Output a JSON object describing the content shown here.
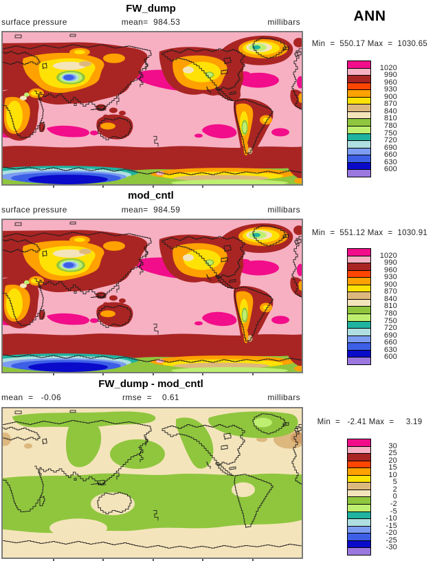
{
  "season_label": "ANN",
  "panels": [
    {
      "title": "FW_dump",
      "left_label": "surface pressure",
      "center_label": "mean=  984.53",
      "right_label": "millibars",
      "minmax_label": "Min  =  550.17 Max  =  1030.65"
    },
    {
      "title": "mod_cntl",
      "left_label": "surface pressure",
      "center_label": "mean=  984.59",
      "right_label": "millibars",
      "minmax_label": "Min  =  551.12 Max  =  1030.91"
    },
    {
      "title": "FW_dump - mod_cntl",
      "left_label": "mean  =   -0.06",
      "center_label": "rmse  =    0.61",
      "right_label": "millibars",
      "minmax_label": "Min  =   -2.41 Max  =     3.19"
    }
  ],
  "pressure_legend": {
    "labels": [
      "1020",
      "990",
      "960",
      "930",
      "900",
      "870",
      "840",
      "810",
      "780",
      "750",
      "720",
      "690",
      "660",
      "630",
      "600"
    ],
    "colors": [
      "#F20D8A",
      "#F6B0C2",
      "#A92523",
      "#FF4500",
      "#FFA100",
      "#FFE205",
      "#DDB87E",
      "#F4E4BB",
      "#8FC63E",
      "#BEEF70",
      "#1FB3A0",
      "#AFDFE0",
      "#7B9CF0",
      "#3C5FE6",
      "#0A0ACB",
      "#9B78E0"
    ]
  },
  "diff_legend": {
    "labels": [
      "30",
      "25",
      "20",
      "15",
      "10",
      "5",
      "2",
      "0",
      "-2",
      "-5",
      "-10",
      "-15",
      "-20",
      "-25",
      "-30"
    ],
    "colors": [
      "#F20D8A",
      "#F6B0C2",
      "#A92523",
      "#FF4500",
      "#FFA100",
      "#FFE205",
      "#DDB87E",
      "#F4E4BB",
      "#8FC63E",
      "#BEEF70",
      "#1FB3A0",
      "#AFDFE0",
      "#7B9CF0",
      "#3C5FE6",
      "#0A0ACB",
      "#9B78E0"
    ]
  },
  "extra_colors": {
    "diff_corner_tan": "#D09C66"
  },
  "map_frame_color": "#7A7A7A",
  "coastline_color": "#1C1C1C",
  "chart_data": [
    {
      "type": "heatmap",
      "title": "FW_dump",
      "variable": "surface pressure",
      "season": "ANN",
      "units": "millibars",
      "mean": 984.53,
      "min": 550.17,
      "max": 1030.65,
      "projection": "global equirectangular map, longitudes 0-360E centered on 180",
      "contour_levels": [
        600,
        630,
        660,
        690,
        720,
        750,
        780,
        810,
        840,
        870,
        900,
        930,
        960,
        990,
        1020
      ],
      "legend_colors_top_to_bottom": [
        "#F20D8A",
        "#F6B0C2",
        "#A92523",
        "#FF4500",
        "#FFA100",
        "#FFE205",
        "#DDB87E",
        "#F4E4BB",
        "#8FC63E",
        "#BEEF70",
        "#1FB3A0",
        "#AFDFE0",
        "#7B9CF0",
        "#3C5FE6",
        "#0A0ACB",
        "#9B78E0"
      ],
      "legend_position": "right"
    },
    {
      "type": "heatmap",
      "title": "mod_cntl",
      "variable": "surface pressure",
      "season": "ANN",
      "units": "millibars",
      "mean": 984.59,
      "min": 551.12,
      "max": 1030.91,
      "projection": "global equirectangular map, longitudes 0-360E centered on 180",
      "contour_levels": [
        600,
        630,
        660,
        690,
        720,
        750,
        780,
        810,
        840,
        870,
        900,
        930,
        960,
        990,
        1020
      ],
      "legend_colors_top_to_bottom": [
        "#F20D8A",
        "#F6B0C2",
        "#A92523",
        "#FF4500",
        "#FFA100",
        "#FFE205",
        "#DDB87E",
        "#F4E4BB",
        "#8FC63E",
        "#BEEF70",
        "#1FB3A0",
        "#AFDFE0",
        "#7B9CF0",
        "#3C5FE6",
        "#0A0ACB",
        "#9B78E0"
      ],
      "legend_position": "right"
    },
    {
      "type": "heatmap",
      "title": "FW_dump - mod_cntl",
      "variable": "surface pressure difference",
      "season": "ANN",
      "units": "millibars",
      "mean": -0.06,
      "rmse": 0.61,
      "min": -2.41,
      "max": 3.19,
      "projection": "global equirectangular map, longitudes 0-360E centered on 180",
      "contour_levels": [
        -30,
        -25,
        -20,
        -15,
        -10,
        -5,
        -2,
        0,
        2,
        5,
        10,
        15,
        20,
        25,
        30
      ],
      "legend_colors_top_to_bottom": [
        "#F20D8A",
        "#F6B0C2",
        "#A92523",
        "#FF4500",
        "#FFA100",
        "#FFE205",
        "#DDB87E",
        "#F4E4BB",
        "#8FC63E",
        "#BEEF70",
        "#1FB3A0",
        "#AFDFE0",
        "#7B9CF0",
        "#3C5FE6",
        "#0A0ACB",
        "#9B78E0"
      ],
      "legend_position": "right"
    }
  ]
}
